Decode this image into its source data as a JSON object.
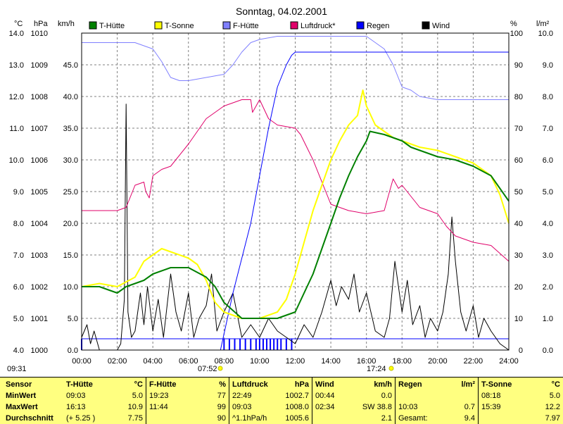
{
  "page_title": "Sonntag, 04.02.2001",
  "axis_units": {
    "temp": "°C",
    "pressure": "hPa",
    "wind": "km/h",
    "humidity": "%",
    "rain": "l/m²"
  },
  "sun_times": {
    "left_edge": "09:31",
    "sunrise": "07:52",
    "sunset": "17:24"
  },
  "legend": [
    {
      "name": "T-Hütte",
      "color": "#008000"
    },
    {
      "name": "T-Sonne",
      "color": "#ffff00"
    },
    {
      "name": "F-Hütte",
      "color": "#8080ff"
    },
    {
      "name": "Luftdruck*",
      "color": "#e0006a"
    },
    {
      "name": "Regen",
      "color": "#0000ff"
    },
    {
      "name": "Wind",
      "color": "#000000"
    }
  ],
  "chart_data": {
    "type": "line",
    "title": "Sonntag, 04.02.2001",
    "x_label_ticks": [
      "00:00",
      "02:00",
      "04:00",
      "06:00",
      "08:00",
      "10:00",
      "12:00",
      "14:00",
      "16:00",
      "18:00",
      "20:00",
      "22:00",
      "24:00"
    ],
    "x_range": [
      0,
      24
    ],
    "axes": {
      "temp_c": {
        "range": [
          4,
          14
        ],
        "ticks": [
          "4.0",
          "5.0",
          "6.0",
          "7.0",
          "8.0",
          "9.0",
          "10.0",
          "11.0",
          "12.0",
          "13.0",
          "14.0"
        ]
      },
      "pressure_hpa": {
        "range": [
          1000,
          1010
        ],
        "ticks": [
          "1000",
          "1001",
          "1002",
          "1003",
          "1004",
          "1005",
          "1006",
          "1007",
          "1008",
          "1009",
          "1010"
        ]
      },
      "wind_kmh": {
        "range": [
          0,
          50
        ],
        "ticks": [
          "0.0",
          "5.0",
          "10.0",
          "15.0",
          "20.0",
          "25.0",
          "30.0",
          "35.0",
          "40.0",
          "45.0"
        ]
      },
      "humidity_pct": {
        "range": [
          0,
          100
        ],
        "ticks": [
          "0",
          "10",
          "20",
          "30",
          "40",
          "50",
          "60",
          "70",
          "80",
          "90",
          "100"
        ]
      },
      "rain_lm2": {
        "range": [
          0,
          10
        ],
        "ticks": [
          "0.0",
          "1.0",
          "2.0",
          "3.0",
          "4.0",
          "5.0",
          "6.0",
          "7.0",
          "8.0",
          "9.0",
          "10.0"
        ]
      }
    },
    "grid": true,
    "series": [
      {
        "name": "T-Hütte",
        "axis": "temp_c",
        "color": "#008000",
        "x": [
          0,
          1,
          1.5,
          2,
          2.5,
          3,
          3.5,
          4,
          5,
          6,
          7,
          7.5,
          8,
          9,
          10,
          11,
          12,
          12.5,
          13,
          13.5,
          14,
          14.5,
          15,
          15.5,
          16,
          16.2,
          17,
          18,
          18.5,
          19,
          20,
          21,
          22,
          23,
          24
        ],
        "y": [
          6.0,
          6.0,
          5.9,
          5.8,
          6.0,
          6.1,
          6.2,
          6.4,
          6.6,
          6.6,
          6.3,
          6.0,
          5.5,
          5.0,
          5.0,
          5.0,
          5.2,
          5.8,
          6.4,
          7.2,
          8.0,
          8.8,
          9.5,
          10.1,
          10.6,
          10.9,
          10.8,
          10.6,
          10.4,
          10.3,
          10.1,
          10.0,
          9.8,
          9.5,
          8.7
        ]
      },
      {
        "name": "T-Sonne",
        "axis": "temp_c",
        "color": "#ffff00",
        "x": [
          0,
          1,
          2,
          3,
          3.5,
          4,
          4.5,
          5,
          6,
          6.5,
          7,
          7.5,
          8,
          9,
          10,
          11,
          11.5,
          12,
          12.5,
          13,
          13.5,
          14,
          14.5,
          15,
          15.5,
          15.8,
          16,
          16.5,
          17,
          17.5,
          18,
          18.5,
          19,
          20,
          21,
          22,
          23,
          23.5,
          24
        ],
        "y": [
          6.0,
          6.1,
          6.0,
          6.3,
          6.8,
          7.0,
          7.2,
          7.1,
          6.9,
          6.7,
          6.2,
          5.5,
          5.2,
          5.0,
          5.0,
          5.2,
          5.6,
          6.4,
          7.4,
          8.4,
          9.2,
          10.0,
          10.6,
          11.1,
          11.4,
          12.2,
          11.7,
          11.1,
          10.9,
          10.7,
          10.6,
          10.5,
          10.4,
          10.3,
          10.1,
          9.9,
          9.5,
          8.9,
          8.0
        ]
      },
      {
        "name": "F-Hütte",
        "axis": "humidity_pct",
        "color": "#8080ff",
        "x": [
          0,
          1,
          2,
          3,
          3.5,
          4,
          4.5,
          5,
          5.5,
          6,
          7,
          8,
          8.5,
          9,
          9.5,
          10,
          11,
          12,
          13,
          14,
          15,
          15.5,
          16,
          17,
          17.5,
          18,
          18.5,
          19,
          20,
          21,
          22,
          23,
          24
        ],
        "y": [
          97,
          97,
          97,
          97,
          96,
          95,
          91,
          86,
          85,
          85,
          86,
          87,
          90,
          94,
          97,
          98,
          99,
          99,
          99,
          99,
          99,
          99,
          99,
          95,
          90,
          83,
          82,
          80,
          79,
          79,
          79,
          79,
          79
        ]
      },
      {
        "name": "Luftdruck*",
        "axis": "pressure_hpa",
        "color": "#e0006a",
        "x": [
          0,
          1,
          2,
          2.5,
          3,
          3.5,
          3.6,
          3.8,
          4,
          4.5,
          5,
          6,
          7,
          8,
          9,
          9.5,
          9.6,
          9.8,
          10,
          10.5,
          11,
          12,
          12.3,
          13,
          14,
          15,
          16,
          17,
          17.3,
          17.5,
          17.8,
          18,
          19,
          20,
          20.5,
          21,
          22,
          23,
          24
        ],
        "y": [
          1004.4,
          1004.4,
          1004.4,
          1004.5,
          1005.2,
          1005.3,
          1005.0,
          1004.8,
          1005.5,
          1005.7,
          1005.8,
          1006.5,
          1007.3,
          1007.7,
          1007.9,
          1007.9,
          1007.5,
          1007.7,
          1007.9,
          1007.3,
          1007.1,
          1007.0,
          1006.8,
          1006.0,
          1004.6,
          1004.4,
          1004.3,
          1004.4,
          1005.0,
          1005.4,
          1005.1,
          1005.2,
          1004.5,
          1004.3,
          1003.9,
          1003.6,
          1003.4,
          1003.3,
          1002.8
        ]
      },
      {
        "name": "Regen",
        "axis": "rain_lm2",
        "color": "#0000ff",
        "x": [
          0,
          7.8,
          8.5,
          9.5,
          10,
          10.5,
          11,
          11.5,
          11.8,
          12,
          13,
          14,
          15,
          16,
          17,
          18,
          19,
          20,
          21,
          22,
          23,
          24
        ],
        "y": [
          0,
          0,
          1.8,
          4.0,
          5.5,
          7.0,
          8.3,
          9.0,
          9.3,
          9.4,
          9.4,
          9.4,
          9.4,
          9.4,
          9.4,
          9.4,
          9.4,
          9.4,
          9.4,
          9.4,
          9.4,
          9.4
        ]
      },
      {
        "name": "Wind",
        "axis": "wind_kmh",
        "color": "#000000",
        "x": [
          0,
          0.3,
          0.5,
          0.7,
          1,
          1.5,
          2,
          2.2,
          2.4,
          2.5,
          2.6,
          2.8,
          3,
          3.3,
          3.5,
          3.7,
          4,
          4.3,
          4.6,
          5,
          5.3,
          5.6,
          6,
          6.3,
          6.6,
          7,
          7.3,
          7.6,
          8,
          8.5,
          9,
          9.5,
          10,
          10.5,
          11,
          11.5,
          12,
          12.5,
          13,
          13.5,
          14,
          14.3,
          14.6,
          15,
          15.3,
          15.6,
          16,
          16.5,
          17,
          17.3,
          17.6,
          18,
          18.3,
          18.6,
          19,
          19.3,
          19.6,
          20,
          20.3,
          20.6,
          20.8,
          21,
          21.3,
          21.6,
          22,
          22.3,
          22.6,
          23,
          23.5,
          24
        ],
        "y": [
          2,
          4,
          1,
          3,
          0,
          0,
          0,
          1,
          8,
          38.8,
          6,
          2,
          3,
          9,
          4,
          10,
          3,
          8,
          2,
          12,
          6,
          3,
          9,
          2,
          5,
          7,
          12,
          3,
          6,
          9,
          2,
          4,
          2,
          5,
          3,
          2,
          1,
          4,
          2,
          6,
          11,
          7,
          10,
          8,
          12,
          6,
          9,
          3,
          2,
          5,
          14,
          6,
          11,
          4,
          7,
          2,
          5,
          3,
          6,
          12,
          21,
          14,
          6,
          3,
          7,
          2,
          5,
          3,
          1,
          0
        ]
      }
    ],
    "rain_events_x": [
      0,
      8.0,
      8.3,
      8.6,
      8.9,
      9.2,
      9.5,
      9.8,
      10.0,
      10.2,
      10.4,
      10.6,
      10.8,
      11.0,
      11.2,
      11.5,
      11.8
    ]
  },
  "stats": {
    "row_labels": [
      "Sensor",
      "MinWert",
      "MaxWert",
      "Durchschnitt"
    ],
    "panels": [
      {
        "name": "T-Hütte",
        "unit": "°C",
        "rows": [
          [
            "09:03",
            "5.0"
          ],
          [
            "16:13",
            "10.9"
          ],
          [
            "(+ 5.25 )",
            "7.75"
          ]
        ]
      },
      {
        "name": "F-Hütte",
        "unit": "%",
        "rows": [
          [
            "19:23",
            "77"
          ],
          [
            "11:44",
            "99"
          ],
          [
            "",
            "90"
          ]
        ]
      },
      {
        "name": "Luftdruck",
        "unit": "hPa",
        "rows": [
          [
            "22:49",
            "1002.7"
          ],
          [
            "09:03",
            "1008.0"
          ],
          [
            "^1.1hPa/h",
            "1005.6"
          ]
        ]
      },
      {
        "name": "Wind",
        "unit": "km/h",
        "rows": [
          [
            "00:44",
            "0.0"
          ],
          [
            "02:34",
            "SW 38.8"
          ],
          [
            "",
            "2.1"
          ]
        ]
      },
      {
        "name": "Regen",
        "unit": "l/m²",
        "rows": [
          [
            "",
            ""
          ],
          [
            "10:03",
            "0.7"
          ],
          [
            "Gesamt:",
            "9.4"
          ]
        ]
      },
      {
        "name": "T-Sonne",
        "unit": "°C",
        "rows": [
          [
            "08:18",
            "5.0"
          ],
          [
            "15:39",
            "12.2"
          ],
          [
            "",
            "7.97"
          ]
        ]
      }
    ]
  }
}
